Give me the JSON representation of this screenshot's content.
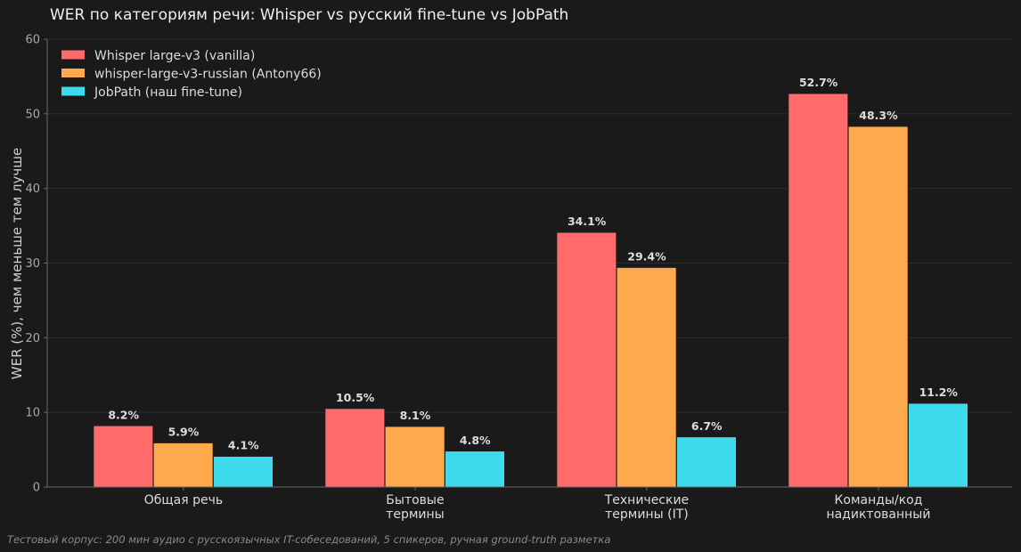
{
  "chart_data": {
    "type": "bar",
    "title": "WER по категориям речи: Whisper vs русский fine-tune vs JobPath",
    "ylabel": "WER (%), чем меньше тем лучше",
    "xlabel": "",
    "ylim": [
      0,
      60
    ],
    "yticks": [
      0,
      10,
      20,
      30,
      40,
      50,
      60
    ],
    "grid": true,
    "legend_position": "top-left",
    "categories": [
      [
        "Общая речь"
      ],
      [
        "Бытовые",
        "термины"
      ],
      [
        "Технические",
        "термины (IT)"
      ],
      [
        "Команды/код",
        "надиктованный"
      ]
    ],
    "series": [
      {
        "name": "Whisper large-v3 (vanilla)",
        "color": "#ff6b6b",
        "values": [
          8.2,
          10.5,
          34.1,
          52.7
        ],
        "labels": [
          "8.2%",
          "10.5%",
          "34.1%",
          "52.7%"
        ]
      },
      {
        "name": "whisper-large-v3-russian (Antony66)",
        "color": "#ffa94d",
        "values": [
          5.9,
          8.1,
          29.4,
          48.3
        ],
        "labels": [
          "5.9%",
          "8.1%",
          "29.4%",
          "48.3%"
        ]
      },
      {
        "name": "JobPath (наш fine-tune)",
        "color": "#3dd9ed",
        "values": [
          4.1,
          4.8,
          6.7,
          11.2
        ],
        "labels": [
          "4.1%",
          "4.8%",
          "6.7%",
          "11.2%"
        ]
      }
    ],
    "footnote": "Тестовый корпус: 200 мин аудио с русскоязычных IT-собеседований, 5 спикеров, ручная ground-truth разметка"
  }
}
